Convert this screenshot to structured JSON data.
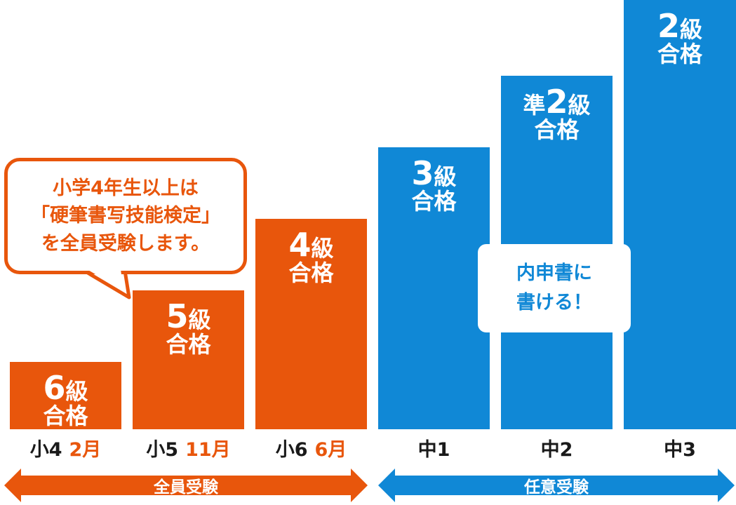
{
  "chart_data": {
    "type": "bar",
    "categories": [
      "小4 2月",
      "小5 11月",
      "小6 6月",
      "中1",
      "中2",
      "中3"
    ],
    "bars": [
      {
        "school": "小4",
        "month": "2月",
        "prefix": "",
        "grade_num": "6",
        "kyu": "級",
        "pass": "合格",
        "level": 1,
        "group": "mandatory"
      },
      {
        "school": "小5",
        "month": "11月",
        "prefix": "",
        "grade_num": "5",
        "kyu": "級",
        "pass": "合格",
        "level": 2,
        "group": "mandatory"
      },
      {
        "school": "小6",
        "month": "6月",
        "prefix": "",
        "grade_num": "4",
        "kyu": "級",
        "pass": "合格",
        "level": 3,
        "group": "mandatory"
      },
      {
        "school": "中1",
        "month": "",
        "prefix": "",
        "grade_num": "3",
        "kyu": "級",
        "pass": "合格",
        "level": 4,
        "group": "optional"
      },
      {
        "school": "中2",
        "month": "",
        "prefix": "準",
        "grade_num": "2",
        "kyu": "級",
        "pass": "合格",
        "level": 5,
        "group": "optional"
      },
      {
        "school": "中3",
        "month": "",
        "prefix": "",
        "grade_num": "2",
        "kyu": "級",
        "pass": "合格",
        "level": 6,
        "group": "optional"
      }
    ],
    "grid": false
  },
  "groups": {
    "mandatory": {
      "label": "全員受験",
      "color": "#e8560c"
    },
    "optional": {
      "label": "任意受験",
      "color": "#1088d6"
    }
  },
  "callout": {
    "lines": [
      "小学4年生以上は",
      "「硬筆書写技能検定」",
      "を全員受験します。"
    ]
  },
  "note": {
    "lines": [
      "内申書に",
      "書ける！"
    ]
  },
  "colors": {
    "orange": "#e8560c",
    "blue": "#1088d6",
    "text": "#1a1a1a"
  }
}
